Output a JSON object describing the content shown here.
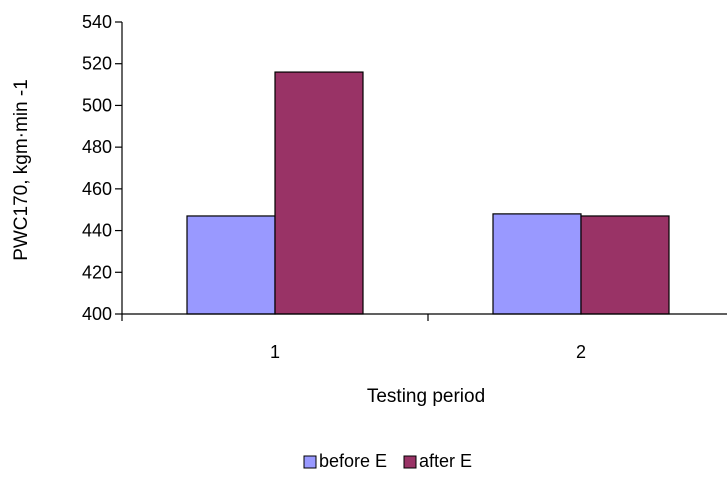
{
  "chart_data": {
    "type": "bar",
    "title": "",
    "xlabel": "Testing period",
    "ylabel": "PWC170, kgm·min -1",
    "categories": [
      "1",
      "2"
    ],
    "series": [
      {
        "name": "before E",
        "values": [
          447,
          448
        ],
        "color": "#9999FF"
      },
      {
        "name": "after E",
        "values": [
          516,
          447
        ],
        "color": "#993366"
      }
    ],
    "ylim": [
      400,
      540
    ],
    "y_ticks": [
      "400",
      "420",
      "440",
      "460",
      "480",
      "500",
      "520",
      "540"
    ],
    "grid": false,
    "legend_position": "bottom"
  }
}
